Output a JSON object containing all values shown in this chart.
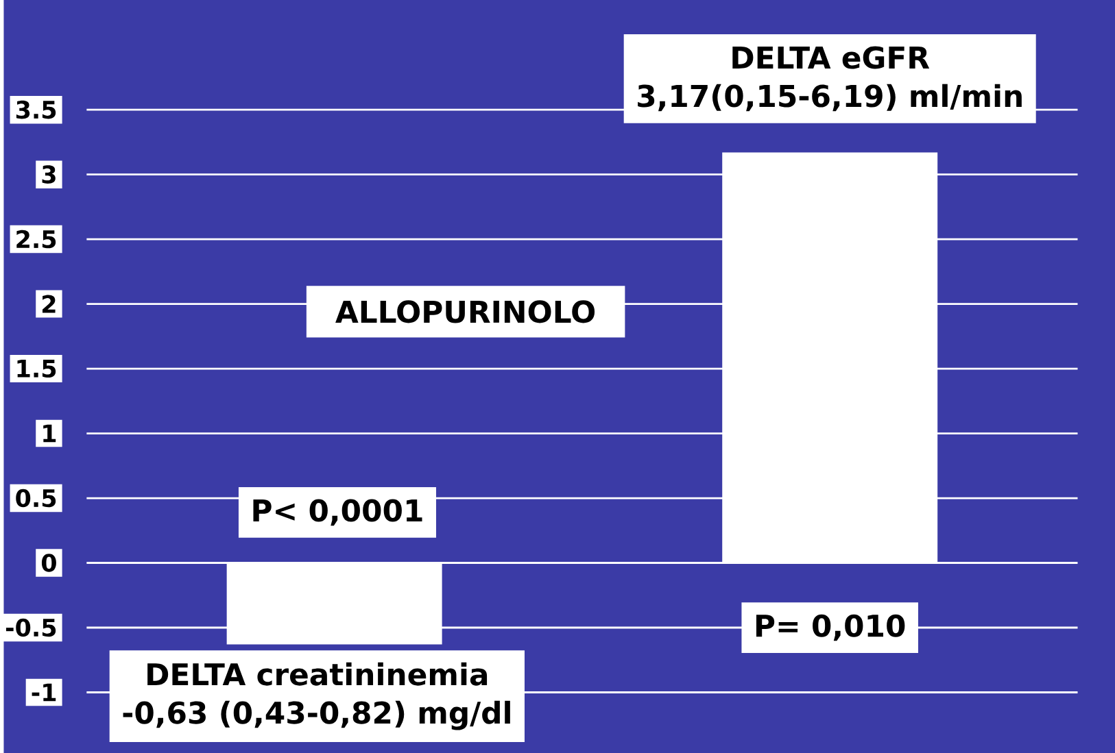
{
  "chart_data": {
    "type": "bar",
    "title": "ALLOPURINOLO",
    "categories": [
      null,
      null
    ],
    "values": [
      -0.63,
      3.17
    ],
    "color": "#ffffff",
    "ylim": [
      -1,
      3.5
    ],
    "yticks": [
      -1,
      -0.5,
      0,
      0.5,
      1,
      1.5,
      2,
      2.5,
      3,
      3.5
    ],
    "grid": "y",
    "annotations": [
      "P< 0,0001",
      "DELTA creatininemia",
      "-0,63 (0,43-0,82) mg/dl",
      "DELTA eGFR",
      "3,17(0,15-6,19) ml/min",
      "P= 0,010"
    ]
  }
}
